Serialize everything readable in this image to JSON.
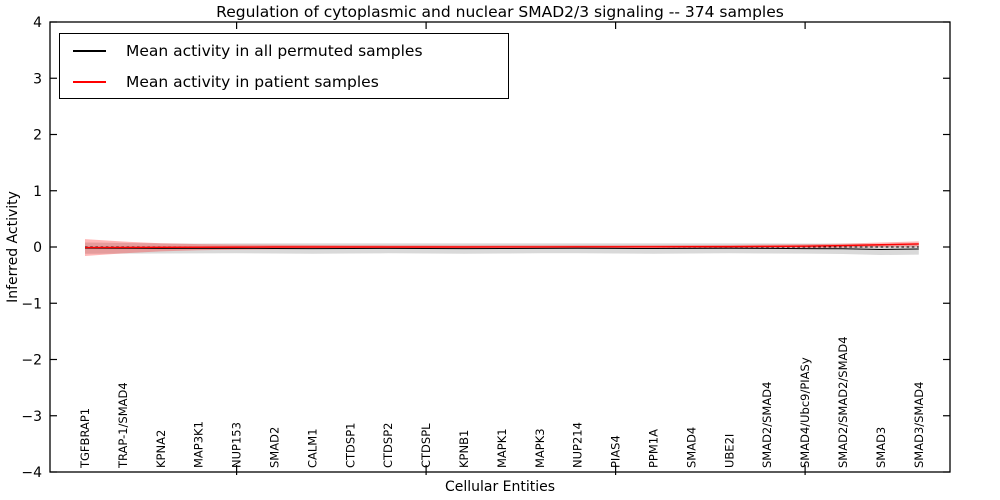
{
  "chart_data": {
    "type": "line",
    "title": "Regulation of cytoplasmic and nuclear SMAD2/3 signaling -- 374 samples",
    "xlabel": "Cellular Entities",
    "ylabel": "Inferred Activity",
    "ylim": [
      -4,
      4
    ],
    "grid": false,
    "legend_position": "upper left",
    "zero_line": {
      "style": "dotted",
      "color": "#000000"
    },
    "yticks": [
      {
        "value": 4,
        "label": "4"
      },
      {
        "value": 3,
        "label": "3"
      },
      {
        "value": 2,
        "label": "2"
      },
      {
        "value": 1,
        "label": "1"
      },
      {
        "value": 0,
        "label": "0"
      },
      {
        "value": -1,
        "label": "−1"
      },
      {
        "value": -2,
        "label": "−2"
      },
      {
        "value": -3,
        "label": "−3"
      },
      {
        "value": -4,
        "label": "−4"
      }
    ],
    "xtick_indices": [
      4,
      9,
      14,
      19
    ],
    "categories": [
      "TGFBRAP1",
      "TRAP-1/SMAD4",
      "KPNA2",
      "MAP3K1",
      "NUP153",
      "SMAD2",
      "CALM1",
      "CTDSP1",
      "CTDSP2",
      "CTDSPL",
      "KPNB1",
      "MAPK1",
      "MAPK3",
      "NUP214",
      "PIAS4",
      "PPM1A",
      "SMAD4",
      "UBE2I",
      "SMAD2/SMAD4",
      "SMAD4/Ubc9/PIASy",
      "SMAD2/SMAD2/SMAD4",
      "SMAD3",
      "SMAD3/SMAD4"
    ],
    "series": [
      {
        "name": "Mean activity in all permuted samples",
        "color": "#000000",
        "band_color": "#aaaaaa",
        "band_opacity": 0.45,
        "line_style": "dashed",
        "values": [
          -0.02,
          -0.022,
          -0.025,
          -0.025,
          -0.024,
          -0.026,
          -0.028,
          -0.026,
          -0.024,
          -0.026,
          -0.028,
          -0.026,
          -0.024,
          -0.023,
          -0.025,
          -0.027,
          -0.025,
          -0.023,
          -0.025,
          -0.028,
          -0.032,
          -0.045,
          -0.035
        ],
        "band": [
          0.1,
          0.095,
          0.09,
          0.088,
          0.088,
          0.09,
          0.092,
          0.09,
          0.088,
          0.09,
          0.093,
          0.09,
          0.088,
          0.088,
          0.09,
          0.092,
          0.09,
          0.088,
          0.09,
          0.09,
          0.093,
          0.098,
          0.1
        ]
      },
      {
        "name": "Mean activity in patient samples",
        "color": "#ff0000",
        "band_color": "#ff2020",
        "band_opacity": 0.33,
        "line_style": "solid",
        "values": [
          -0.01,
          -0.008,
          -0.005,
          -0.003,
          -0.002,
          0.0,
          0.0,
          0.0,
          0.0,
          0.0,
          0.0,
          0.002,
          0.002,
          0.003,
          0.003,
          0.004,
          0.005,
          0.006,
          0.01,
          0.015,
          0.025,
          0.04,
          0.055
        ],
        "band": [
          0.15,
          0.105,
          0.072,
          0.055,
          0.045,
          0.04,
          0.035,
          0.032,
          0.03,
          0.028,
          0.027,
          0.026,
          0.026,
          0.026,
          0.027,
          0.028,
          0.028,
          0.03,
          0.032,
          0.034,
          0.036,
          0.04,
          0.045
        ]
      }
    ]
  }
}
